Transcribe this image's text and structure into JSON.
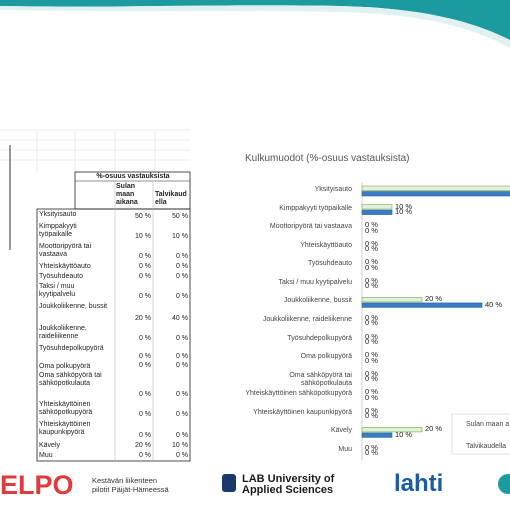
{
  "table": {
    "header": "%-osuus vastauksista",
    "columns": [
      "Sulan\nmaan\naikana",
      "Talvikaud\nella"
    ],
    "rows": [
      {
        "label": "Yksityisauto",
        "values": [
          "50 %",
          "50 %"
        ]
      },
      {
        "label": "Kimppakyyti\ntyöpaikalle",
        "values": [
          "10 %",
          "10 %"
        ]
      },
      {
        "label": "Moottoripyörä tai\nvastaava",
        "values": [
          "0 %",
          "0 %"
        ]
      },
      {
        "label": "Yhteiskäyttöauto",
        "values": [
          "0 %",
          "0 %"
        ]
      },
      {
        "label": "Työsuhdeauto",
        "values": [
          "0 %",
          "0 %"
        ]
      },
      {
        "label": "Taksi / muu\nkyytipalvelu",
        "values": [
          "0 %",
          "0 %"
        ]
      },
      {
        "label": "Joukkoliikenne, bussit",
        "values": [
          "20 %",
          "40 %"
        ]
      },
      {
        "label": "Joukkoliikenne,\nraideliikenne",
        "values": [
          "0 %",
          "0 %"
        ]
      },
      {
        "label": "Työsuhdepolkupyörä",
        "values": [
          "0 %",
          "0 %"
        ]
      },
      {
        "label": "Oma polkupyörä",
        "values": [
          "0 %",
          "0 %"
        ]
      },
      {
        "label": "Oma sähköpyörä tai\nsähköpotkulauta",
        "values": [
          "0 %",
          "0 %"
        ]
      },
      {
        "label": "Yhteiskäyttöinen\nsähköpotkupyörä",
        "values": [
          "0 %",
          "0 %"
        ]
      },
      {
        "label": "Yhteiskäyttöinen\nkaupunkipyörä",
        "values": [
          "0 %",
          "0 %"
        ]
      },
      {
        "label": "Kävely",
        "values": [
          "20 %",
          "10 %"
        ]
      },
      {
        "label": "Muu",
        "values": [
          "0 %",
          "0 %"
        ]
      }
    ]
  },
  "chart_data": {
    "type": "hbar",
    "title": "Kulkumuodot (%-osuus vastauksista)",
    "categories": [
      "Yksityisauto",
      "Kimppakyyti työpaikalle",
      "Moottoripyörä tai vastaava",
      "Yhteiskäyttöauto",
      "Työsuhdeauto",
      "Taksi / muu kyytipalvelu",
      "Joukkoliikenne, bussit",
      "Joukkoliikenne, raideliikenne",
      "Työsuhdepolkupyörä",
      "Oma polkupyörä",
      "Oma sähköpyörä tai\nsähköpotkulauta",
      "Yhteiskäyttöinen sähköpotkupyörä",
      "Yhteiskäyttöinen kaupunkipyörä",
      "Kävely",
      "Muu"
    ],
    "xlim": [
      0,
      50
    ],
    "series": [
      {
        "name": "Sulan maan a",
        "color": "#e2f0d9",
        "stroke": "#70ad47",
        "values": [
          50,
          10,
          0,
          0,
          0,
          0,
          20,
          0,
          0,
          0,
          0,
          0,
          0,
          20,
          0
        ],
        "value_labels": [
          null,
          "10 %",
          "0 %",
          "0 %",
          "0 %",
          "0 %",
          "20 %",
          "0 %",
          "0 %",
          "0 %",
          "0 %",
          "0 %",
          "0 %",
          "20 %",
          "0 %"
        ]
      },
      {
        "name": "Talvikaudella",
        "color": "#3a7cc3",
        "stroke": "#2e64a0",
        "values": [
          50,
          10,
          0,
          0,
          0,
          0,
          40,
          0,
          0,
          0,
          0,
          0,
          0,
          10,
          0
        ],
        "value_labels": [
          null,
          "10 %",
          "0 %",
          "0 %",
          "0 %",
          "0 %",
          "40 %",
          "0 %",
          "0 %",
          "0 %",
          "0 %",
          "0 %",
          "0 %",
          "10 %",
          "0 %"
        ]
      }
    ]
  },
  "footer": {
    "brand": "ELPO",
    "tagline": "Kestävän liikenteen\npilotit Päijät-Hämeessä",
    "university": "LAB University of\nApplied Sciences",
    "city": "lahti"
  }
}
